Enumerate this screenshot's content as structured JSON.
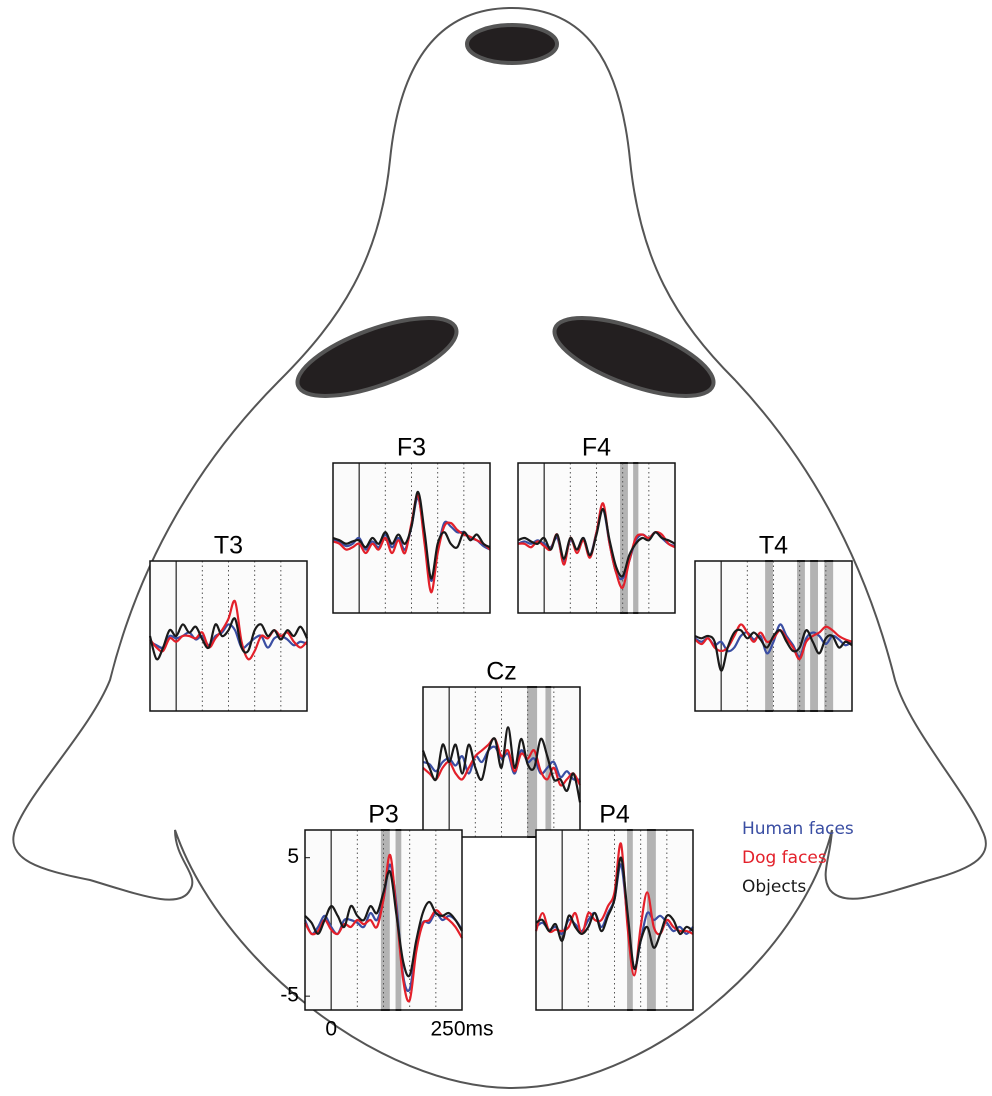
{
  "chart_data": {
    "type": "line",
    "x": [
      -50,
      -37.5,
      -25,
      -12.5,
      0,
      12.5,
      25,
      37.5,
      50,
      62.5,
      75,
      87.5,
      100,
      112.5,
      125,
      137.5,
      150,
      162.5,
      175,
      187.5,
      200,
      212.5,
      225,
      237.5,
      250
    ],
    "xlim": [
      -50,
      250
    ],
    "xticks": [
      {
        "value": 0,
        "label": "0"
      },
      {
        "value": 250,
        "label": "250ms"
      }
    ],
    "xgrid": [
      50,
      100,
      150,
      200
    ],
    "ylim": [
      -6,
      7
    ],
    "yticks": [
      5,
      -5
    ],
    "series": [
      {
        "name": "Human faces",
        "color": "#3a4ea3"
      },
      {
        "name": "Dog faces",
        "color": "#e3202a"
      },
      {
        "name": "Objects",
        "color": "#1a1a1a"
      }
    ],
    "panels": [
      {
        "title": "F3",
        "significant": [],
        "series": [
          {
            "values": [
              0.3,
              0.2,
              -0.2,
              0,
              0.5,
              -0.5,
              0.2,
              -0.3,
              0.8,
              -0.3,
              0.5,
              -0.5,
              1.5,
              4,
              0.5,
              -3.2,
              -0.5,
              1.8,
              1.5,
              1,
              1,
              0.5,
              0.3,
              -0.2,
              -0.5
            ]
          },
          {
            "values": [
              0.2,
              0,
              -0.5,
              -0.3,
              0,
              -0.8,
              0,
              -0.5,
              0.5,
              -0.8,
              0.3,
              -0.8,
              1.8,
              4.2,
              0,
              -4.2,
              -0.8,
              1.5,
              1.8,
              1.2,
              0.8,
              0.6,
              0.3,
              0,
              -0.5
            ]
          },
          {
            "values": [
              0.5,
              0.3,
              0,
              0.2,
              0.3,
              -0.3,
              0.5,
              0,
              1,
              0,
              0.8,
              0,
              1.5,
              4.5,
              1,
              -3,
              0,
              1,
              0,
              -0.3,
              1,
              0.3,
              0.8,
              0,
              -0.3
            ]
          }
        ]
      },
      {
        "title": "F4",
        "significant": [
          [
            145,
            160
          ],
          [
            170,
            180
          ]
        ],
        "series": [
          {
            "values": [
              0,
              0.2,
              0,
              0.3,
              0,
              -0.3,
              0.5,
              -1.5,
              0.3,
              -0.5,
              0.5,
              -1,
              1,
              3,
              0,
              -2.5,
              -3,
              -1.5,
              0.3,
              0.8,
              0.5,
              1,
              0.5,
              0,
              -0.2
            ]
          },
          {
            "values": [
              0,
              0,
              -0.3,
              0.2,
              -0.2,
              -0.5,
              0.8,
              -1.8,
              0.5,
              -0.8,
              0.3,
              -1.2,
              1,
              3.5,
              0,
              -2.5,
              -3.8,
              -1.5,
              0.5,
              0.8,
              0.5,
              1,
              0.8,
              0,
              -0.3
            ]
          },
          {
            "values": [
              0.3,
              0.5,
              0.2,
              0,
              0.5,
              -0.5,
              0.8,
              -1.3,
              0.5,
              -0.5,
              0.5,
              -1,
              0.8,
              3,
              0.3,
              -2,
              -2.8,
              -1,
              0,
              0.5,
              0.3,
              1,
              0.5,
              0.3,
              0
            ]
          }
        ]
      },
      {
        "title": "T3",
        "significant": [],
        "series": [
          {
            "values": [
              0,
              -0.3,
              -0.5,
              0.5,
              0.3,
              0.5,
              0.8,
              0.2,
              0.5,
              -0.3,
              0.5,
              0.8,
              1.5,
              1,
              -0.5,
              -0.2,
              0.3,
              0.5,
              -0.5,
              0.3,
              0.5,
              0.2,
              -0.3,
              0,
              -0.2
            ]
          },
          {
            "values": [
              0.2,
              -0.5,
              -0.8,
              0.3,
              0,
              0.5,
              0.5,
              0.3,
              0.8,
              -0.5,
              0.3,
              1,
              2,
              3.5,
              0,
              -1.5,
              -0.8,
              0.5,
              0.3,
              1,
              0.5,
              0.8,
              0,
              -0.5,
              0
            ]
          },
          {
            "values": [
              0.5,
              -1.5,
              -0.5,
              1,
              0.5,
              1.5,
              0.8,
              1.3,
              0.2,
              -0.5,
              1.5,
              0.5,
              1,
              2,
              -0.5,
              -0.8,
              1,
              1.5,
              0.5,
              1,
              0.2,
              1,
              0.5,
              1.3,
              0.3
            ]
          }
        ]
      },
      {
        "title": "T4",
        "significant": [
          [
            84,
            99
          ],
          [
            145,
            160
          ],
          [
            170,
            185
          ],
          [
            197,
            214
          ]
        ],
        "series": [
          {
            "values": [
              0.3,
              0,
              0.3,
              -0.3,
              0,
              -0.8,
              -0.5,
              0.5,
              0.8,
              0.2,
              0.5,
              -1,
              0,
              1.5,
              0.5,
              -0.3,
              -1.3,
              0.3,
              0.8,
              0.5,
              -0.2,
              0.5,
              0.2,
              -0.3,
              0
            ]
          },
          {
            "values": [
              0.2,
              -0.2,
              0.3,
              -0.5,
              -0.8,
              -0.5,
              0.5,
              1.5,
              0.8,
              0,
              0.8,
              0,
              0.3,
              1,
              0.3,
              -0.5,
              -1.5,
              0,
              0.5,
              0.8,
              1.3,
              1,
              0.5,
              0.2,
              0
            ]
          },
          {
            "values": [
              0.5,
              0.3,
              0.5,
              0,
              -2.5,
              -0.5,
              0.8,
              1,
              0.3,
              0.8,
              0.2,
              -0.5,
              0.5,
              1,
              0,
              -0.8,
              -0.5,
              1,
              0,
              -1,
              0.3,
              0.5,
              -0.5,
              0,
              -0.3
            ]
          }
        ]
      },
      {
        "title": "Cz",
        "significant": [
          [
            149,
            168
          ],
          [
            184,
            195
          ]
        ],
        "series": [
          {
            "values": [
              0.5,
              0.3,
              -0.3,
              0.5,
              0.8,
              0.2,
              1,
              -0.5,
              1,
              0.5,
              1.5,
              1.8,
              0.8,
              1.2,
              -0.5,
              1.5,
              0.5,
              0.8,
              -0.5,
              0,
              0.5,
              -0.8,
              -0.3,
              -1,
              -1
            ]
          },
          {
            "values": [
              0,
              -0.5,
              -1,
              0,
              0.5,
              -0.5,
              -1,
              0,
              1,
              1.5,
              2,
              2.5,
              1,
              1.5,
              -0.3,
              1.2,
              0.8,
              1.5,
              -0.3,
              -1,
              0,
              -1.5,
              -1,
              -0.5,
              -1.5
            ]
          },
          {
            "values": [
              1.5,
              0,
              -1,
              2,
              0.5,
              2,
              -0.5,
              2,
              0,
              -1,
              1.5,
              2.5,
              0,
              3.5,
              0,
              2.5,
              0.3,
              0,
              2.5,
              1,
              -1,
              -1,
              -2,
              -0.5,
              -3
            ]
          }
        ]
      },
      {
        "title": "P3",
        "significant": [
          [
            95,
            112
          ],
          [
            123,
            134
          ]
        ],
        "series": [
          {
            "values": [
              0.5,
              -0.5,
              0,
              0.8,
              0,
              -0.5,
              0.5,
              0.5,
              0.3,
              0,
              1,
              0.5,
              2,
              4.5,
              1.5,
              -3.5,
              -4.5,
              -1.5,
              0.3,
              0.3,
              1,
              0.5,
              0.8,
              0.5,
              -0.2
            ]
          },
          {
            "values": [
              0.3,
              -0.5,
              -0.3,
              0.5,
              -0.2,
              -0.5,
              0.2,
              0,
              0.5,
              0.2,
              0.5,
              0,
              2,
              5.2,
              1,
              -3.8,
              -5.3,
              -1.8,
              0.2,
              0.5,
              1.2,
              0.8,
              0.5,
              0,
              -0.8
            ]
          },
          {
            "values": [
              0.8,
              0.3,
              -0.5,
              0.5,
              1.5,
              0.8,
              0,
              1.5,
              0.8,
              0.5,
              1.5,
              1,
              2.5,
              4,
              0.8,
              -2.5,
              -3.5,
              -1,
              1,
              1.8,
              1,
              0.8,
              1,
              0.5,
              -0.3
            ]
          }
        ]
      },
      {
        "title": "P4",
        "significant": [
          [
            124,
            135
          ],
          [
            162,
            179
          ]
        ],
        "series": [
          {
            "values": [
              0,
              0.3,
              -0.2,
              0,
              -0.5,
              0.5,
              0.2,
              -0.3,
              0.5,
              1,
              0,
              1,
              2,
              4.5,
              0.5,
              -3,
              -1,
              1,
              0.5,
              0.8,
              0.3,
              -0.3,
              0,
              -0.5,
              0
            ]
          },
          {
            "values": [
              -0.3,
              1,
              -0.3,
              -0.2,
              -0.3,
              0,
              1,
              -0.5,
              1,
              0.5,
              0.5,
              1.5,
              2.5,
              6,
              0,
              -3.5,
              0,
              2.5,
              0,
              -0.5,
              0.5,
              0,
              -0.3,
              -0.3,
              -0.5
            ]
          },
          {
            "values": [
              0.3,
              0.5,
              -0.3,
              0.2,
              -1,
              0.8,
              0,
              -0.5,
              0,
              1,
              -0.3,
              0.8,
              2,
              5,
              1,
              -3,
              -1,
              0,
              -1.5,
              -0.5,
              0.8,
              0.5,
              -0.5,
              0,
              -0.3
            ]
          }
        ]
      }
    ]
  }
}
